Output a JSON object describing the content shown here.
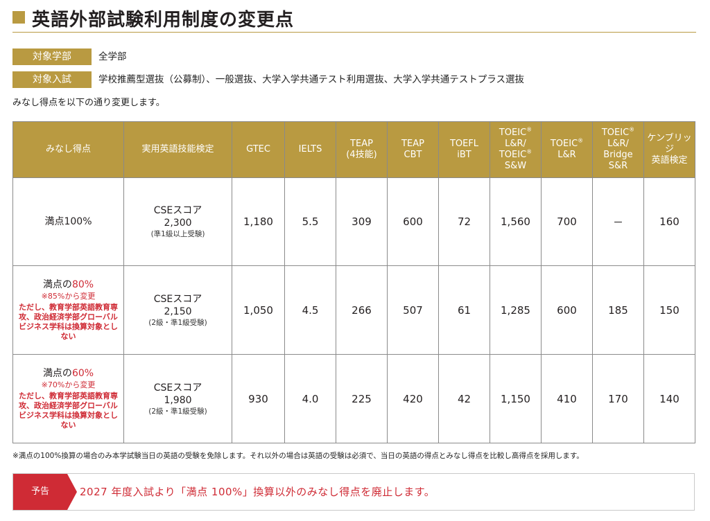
{
  "title": "英語外部試験利用制度の変更点",
  "info": {
    "faculty_label": "対象学部",
    "faculty_value": "全学部",
    "exam_label": "対象入試",
    "exam_value": "学校推薦型選抜（公募制）、一般選抜、大学入学共通テスト利用選抜、大学入学共通テストプラス選抜"
  },
  "intro_note": "みなし得点を以下の通り変更します。",
  "table": {
    "headers": {
      "c0": "みなし得点",
      "c1": "実用英語技能検定",
      "c2": "GTEC",
      "c3": "IELTS",
      "c4_a": "TEAP",
      "c4_b": "(4技能)",
      "c5_a": "TEAP",
      "c5_b": "CBT",
      "c6_a": "TOEFL",
      "c6_b": "iBT",
      "c7_a": "TOEIC",
      "c7_b": "L&R/",
      "c7_c": "TOEIC",
      "c7_d": "S&W",
      "c8_a": "TOEIC",
      "c8_b": "L&R",
      "c9_a": "TOEIC",
      "c9_b": "L&R/",
      "c9_c": "Bridge",
      "c9_d": "S&R",
      "c10_a": "ケンブリッジ",
      "c10_b": "英語検定",
      "reg": "®"
    },
    "rows": [
      {
        "mark": "満点100%",
        "cse_main": "CSEスコア",
        "cse_score": "2,300",
        "cse_note": "(準1級以上受験)",
        "gtec": "1,180",
        "ielts": "5.5",
        "teap": "309",
        "teap_cbt": "600",
        "toefl": "72",
        "toeic_lrsw": "1,560",
        "toeic_lr": "700",
        "toeic_bridge": "－",
        "cambridge": "160"
      },
      {
        "mark_prefix": "満点の",
        "mark_pct": "80%",
        "change_note": "※85%から変更",
        "exclusion_note": "ただし、教育学部英語教育専攻、政治経済学部グローバルビジネス学科は換算対象としない",
        "cse_main": "CSEスコア",
        "cse_score": "2,150",
        "cse_note": "(2級・準1級受験)",
        "gtec": "1,050",
        "ielts": "4.5",
        "teap": "266",
        "teap_cbt": "507",
        "toefl": "61",
        "toeic_lrsw": "1,285",
        "toeic_lr": "600",
        "toeic_bridge": "185",
        "cambridge": "150"
      },
      {
        "mark_prefix": "満点の",
        "mark_pct": "60%",
        "change_note": "※70%から変更",
        "exclusion_note": "ただし、教育学部英語教育専攻、政治経済学部グローバルビジネス学科は換算対象としない",
        "cse_main": "CSEスコア",
        "cse_score": "1,980",
        "cse_note": "(2級・準1級受験)",
        "gtec": "930",
        "ielts": "4.0",
        "teap": "225",
        "teap_cbt": "420",
        "toefl": "42",
        "toeic_lrsw": "1,150",
        "toeic_lr": "410",
        "toeic_bridge": "170",
        "cambridge": "140"
      }
    ]
  },
  "footnote": "※満点の100%換算の場合のみ本学試験当日の英語の受験を免除します。それ以外の場合は英語の受験は必須で、当日の英語の得点とみなし得点を比較し高得点を採用します。",
  "notice": {
    "tag": "予告",
    "text": "2027 年度入試より「満点 100%」換算以外のみなし得点を廃止します。"
  },
  "colors": {
    "accent_gold": "#b99a41",
    "alert_red": "#cf2b35"
  }
}
